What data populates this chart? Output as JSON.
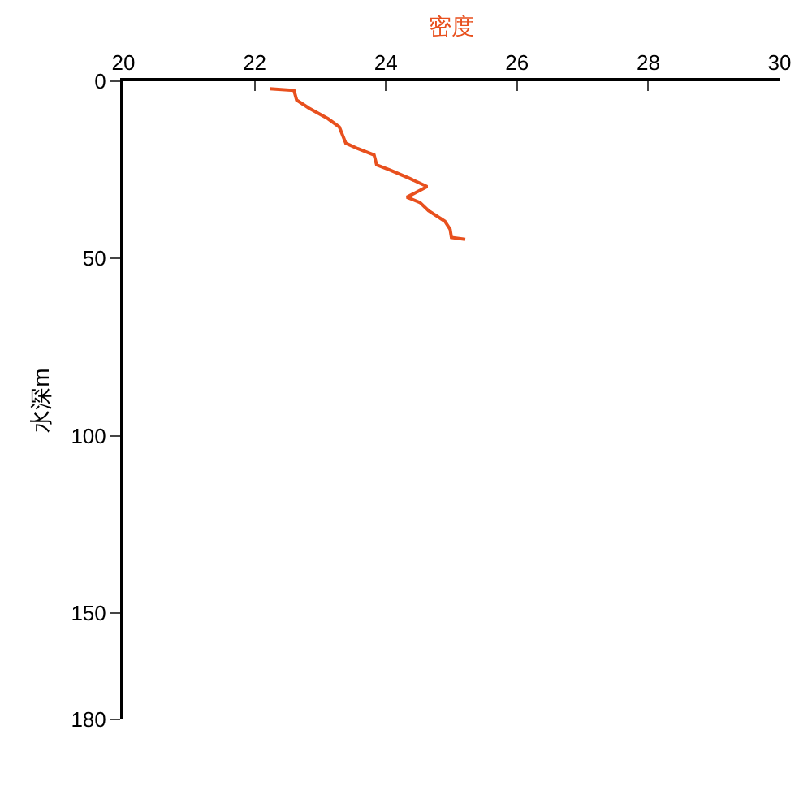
{
  "chart_data": {
    "type": "line",
    "xlabel": "密度",
    "ylabel": "水深m",
    "series": [
      {
        "color": "#e8501e",
        "x": [
          22.23,
          22.6,
          22.64,
          22.83,
          23.12,
          23.29,
          23.39,
          23.57,
          23.82,
          23.86,
          24.07,
          24.36,
          24.63,
          24.32,
          24.52,
          24.65,
          24.9,
          24.98,
          25.0,
          25.21
        ],
        "values": [
          2.1,
          2.6,
          5.3,
          7.6,
          10.6,
          12.9,
          17.5,
          19,
          20.8,
          23.6,
          25.1,
          27.4,
          29.7,
          32.7,
          34.2,
          36.5,
          39.5,
          41.8,
          44.1,
          44.6
        ]
      }
    ],
    "xlim": [
      20,
      30
    ],
    "xticks": [
      20,
      22,
      24,
      26,
      28,
      30
    ],
    "ylim": [
      180,
      0
    ],
    "yticks": [
      0,
      50,
      100,
      150,
      180
    ],
    "marker": "none",
    "line_style": "solid"
  }
}
